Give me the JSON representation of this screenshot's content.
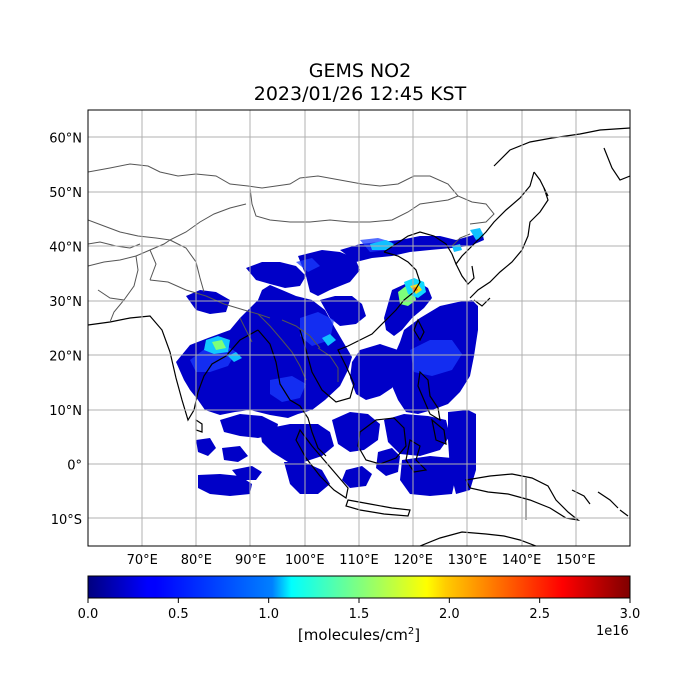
{
  "title": {
    "line1": "GEMS NO2",
    "line2": "2023/01/26 12:45 KST"
  },
  "map": {
    "lon_range_deg": [
      60,
      160
    ],
    "lat_range_deg": [
      -15,
      65
    ],
    "x_ticks": [
      {
        "lon": 70,
        "label": "70°E"
      },
      {
        "lon": 80,
        "label": "80°E"
      },
      {
        "lon": 90,
        "label": "90°E"
      },
      {
        "lon": 100,
        "label": "100°E"
      },
      {
        "lon": 110,
        "label": "110°E"
      },
      {
        "lon": 120,
        "label": "120°E"
      },
      {
        "lon": 130,
        "label": "130°E"
      },
      {
        "lon": 140,
        "label": "140°E"
      },
      {
        "lon": 150,
        "label": "150°E"
      }
    ],
    "y_ticks": [
      {
        "lat": 60,
        "label": "60°N"
      },
      {
        "lat": 50,
        "label": "50°N"
      },
      {
        "lat": 40,
        "label": "40°N"
      },
      {
        "lat": 30,
        "label": "30°N"
      },
      {
        "lat": 20,
        "label": "20°N"
      },
      {
        "lat": 10,
        "label": "10°N"
      },
      {
        "lat": 0,
        "label": "0°"
      },
      {
        "lat": -10,
        "label": "10°S"
      }
    ],
    "grid": true,
    "data_color_low": "#0000c8",
    "data_color_mid": "#1b2fd6",
    "hotspot_color": "#f0e020",
    "hotspot_color_alt": "#ff7a00"
  },
  "colorbar": {
    "colormap": "jet",
    "vmin": 0.0,
    "vmax": 3.0,
    "ticks": [
      "0.0",
      "0.5",
      "1.0",
      "1.5",
      "2.0",
      "2.5",
      "3.0"
    ],
    "exponent": "1e16",
    "label_prefix": "[molecules/cm",
    "label_sup": "2",
    "label_suffix": "]"
  }
}
